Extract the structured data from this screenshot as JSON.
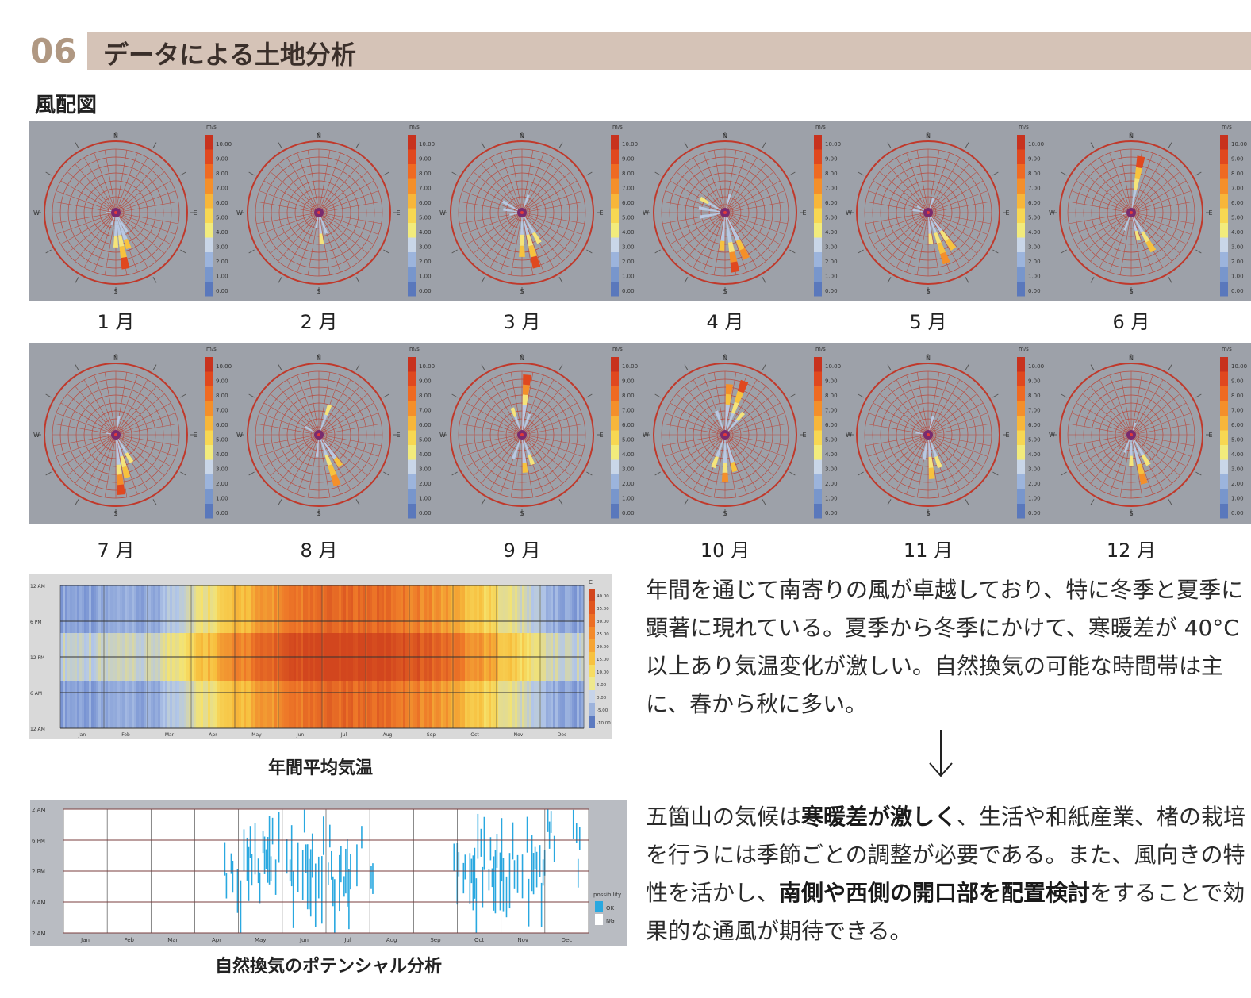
{
  "header": {
    "number": "06",
    "title": "データによる土地分析"
  },
  "wind_rose": {
    "title": "風配図",
    "unit": "m/s",
    "scale_ticks": [
      "10.00",
      "9.00",
      "8.00",
      "7.00",
      "6.00",
      "5.00",
      "4.00",
      "3.00",
      "2.00",
      "1.00",
      "0.00"
    ],
    "compass": [
      "N",
      "E",
      "S",
      "W"
    ],
    "months": [
      "1 月",
      "2 月",
      "3 月",
      "4 月",
      "5 月",
      "6 月",
      "7 月",
      "8 月",
      "9 月",
      "10 月",
      "11 月",
      "12 月"
    ]
  },
  "temperature_chart": {
    "caption": "年間平均気温",
    "y_ticks": [
      "12 AM",
      "6 PM",
      "12 PM",
      "6 AM",
      "12 AM"
    ],
    "months": [
      "Jan",
      "Feb",
      "Mar",
      "Apr",
      "May",
      "Jun",
      "Jul",
      "Aug",
      "Sep",
      "Oct",
      "Nov",
      "Dec"
    ],
    "unit": "C",
    "legend_ticks": [
      "40.00",
      "35.00",
      "30.00",
      "25.00",
      "20.00",
      "15.00",
      "10.00",
      "5.00",
      "0.00",
      "-5.00",
      "-10.00"
    ]
  },
  "ventilation_chart": {
    "caption": "自然換気のポテンシャル分析",
    "y_ticks": [
      "2 AM",
      "6 PM",
      "2 PM",
      "6 AM",
      "2 AM"
    ],
    "months": [
      "Jan",
      "Feb",
      "Mar",
      "Apr",
      "May",
      "Jun",
      "Jul",
      "Aug",
      "Sep",
      "Oct",
      "Nov",
      "Dec"
    ],
    "legend_title": "possibility",
    "legend_ok": "OK",
    "legend_ng": "NG"
  },
  "text": {
    "para1": "年間を通じて南寄りの風が卓越しており、特に冬季と夏季に顕著に現れている。夏季から冬季にかけて、寒暖差が 40°C以上あり気温変化が激しい。自然換気の可能な時間帯は主に、春から秋に多い。",
    "para2_a": "五箇山の気候は",
    "para2_b": "寒暖差が激しく",
    "para2_c": "、生活や和紙産業、楮の栽培を行うには季節ごとの調整が必要である。また、風向きの特性を活かし、",
    "para2_d": "南側や西側の開口部を配置検討",
    "para2_e": "をすることで効果的な通風が期待できる。"
  },
  "colors": {
    "accent": "#d5c3b7",
    "number": "#b09882",
    "ok": "#29a8e0"
  }
}
